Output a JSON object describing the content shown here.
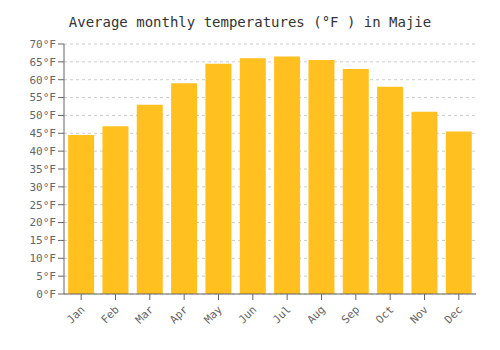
{
  "chart_data": {
    "type": "bar",
    "title": "Average monthly temperatures (°F ) in Majie",
    "categories": [
      "Jan",
      "Feb",
      "Mar",
      "Apr",
      "May",
      "Jun",
      "Jul",
      "Aug",
      "Sep",
      "Oct",
      "Nov",
      "Dec"
    ],
    "values": [
      44.5,
      47.0,
      53.0,
      59.0,
      64.5,
      66.0,
      66.5,
      65.5,
      63.0,
      58.0,
      51.0,
      45.5
    ],
    "color": "#FFC020",
    "ylim": [
      0,
      70
    ],
    "yticks": [
      {
        "value": 0,
        "label": "0°F"
      },
      {
        "value": 5,
        "label": "5°F"
      },
      {
        "value": 10,
        "label": "10°F"
      },
      {
        "value": 15,
        "label": "15°F"
      },
      {
        "value": 20,
        "label": "20°F"
      },
      {
        "value": 25,
        "label": "25°F"
      },
      {
        "value": 30,
        "label": "30°F"
      },
      {
        "value": 35,
        "label": "35°F"
      },
      {
        "value": 40,
        "label": "40°F"
      },
      {
        "value": 45,
        "label": "45°F"
      },
      {
        "value": 50,
        "label": "50°F"
      },
      {
        "value": 55,
        "label": "55°F"
      },
      {
        "value": 60,
        "label": "60°F"
      },
      {
        "value": 65,
        "label": "65°F"
      },
      {
        "value": 70,
        "label": "70°F"
      }
    ],
    "grid": true
  }
}
